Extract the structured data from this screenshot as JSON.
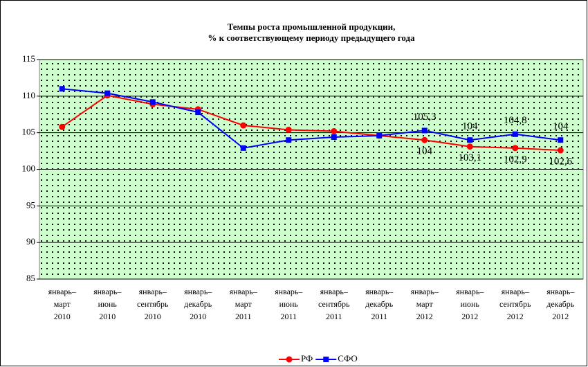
{
  "chart_data": {
    "type": "line",
    "title": [
      "Темпы роста промышленной продукции,",
      "% к соответствующему периоду предыдущего года"
    ],
    "categories": [
      [
        "январь–",
        "март",
        "2010"
      ],
      [
        "январь–",
        "июнь",
        "2010"
      ],
      [
        "январь–",
        "сентябрь",
        "2010"
      ],
      [
        "январь–",
        "декабрь",
        "2010"
      ],
      [
        "январь–",
        "март",
        "2011"
      ],
      [
        "январь–",
        "июнь",
        "2011"
      ],
      [
        "январь–",
        "сентябрь",
        "2011"
      ],
      [
        "январь–",
        "декабрь",
        "2011"
      ],
      [
        "январь–",
        "март",
        "2012"
      ],
      [
        "январь–",
        "июнь",
        "2012"
      ],
      [
        "январь–",
        "сентябрь",
        "2012"
      ],
      [
        "январь–",
        "декабрь",
        "2012"
      ]
    ],
    "series": [
      {
        "name": "РФ",
        "color": "#ff0000",
        "marker": "circle",
        "values": [
          105.8,
          110.1,
          108.9,
          108.2,
          106.0,
          105.4,
          105.2,
          104.6,
          104.0,
          103.1,
          102.9,
          102.6
        ],
        "value_labels": [
          null,
          null,
          null,
          null,
          null,
          null,
          null,
          null,
          "104",
          "103,1",
          "102,9",
          "102,6"
        ],
        "label_position": "below"
      },
      {
        "name": "СФО",
        "color": "#0000ff",
        "marker": "square",
        "values": [
          111.0,
          110.4,
          109.2,
          107.8,
          102.9,
          104.0,
          104.4,
          104.6,
          105.3,
          104.0,
          104.8,
          104.0
        ],
        "value_labels": [
          null,
          null,
          null,
          null,
          null,
          null,
          null,
          null,
          "105,3",
          "104",
          "104,8",
          "104"
        ],
        "label_position": "above"
      }
    ],
    "ylim": [
      85,
      115
    ],
    "yticks": [
      85,
      90,
      95,
      100,
      105,
      110,
      115
    ],
    "grid": true,
    "legend": "bottom"
  }
}
